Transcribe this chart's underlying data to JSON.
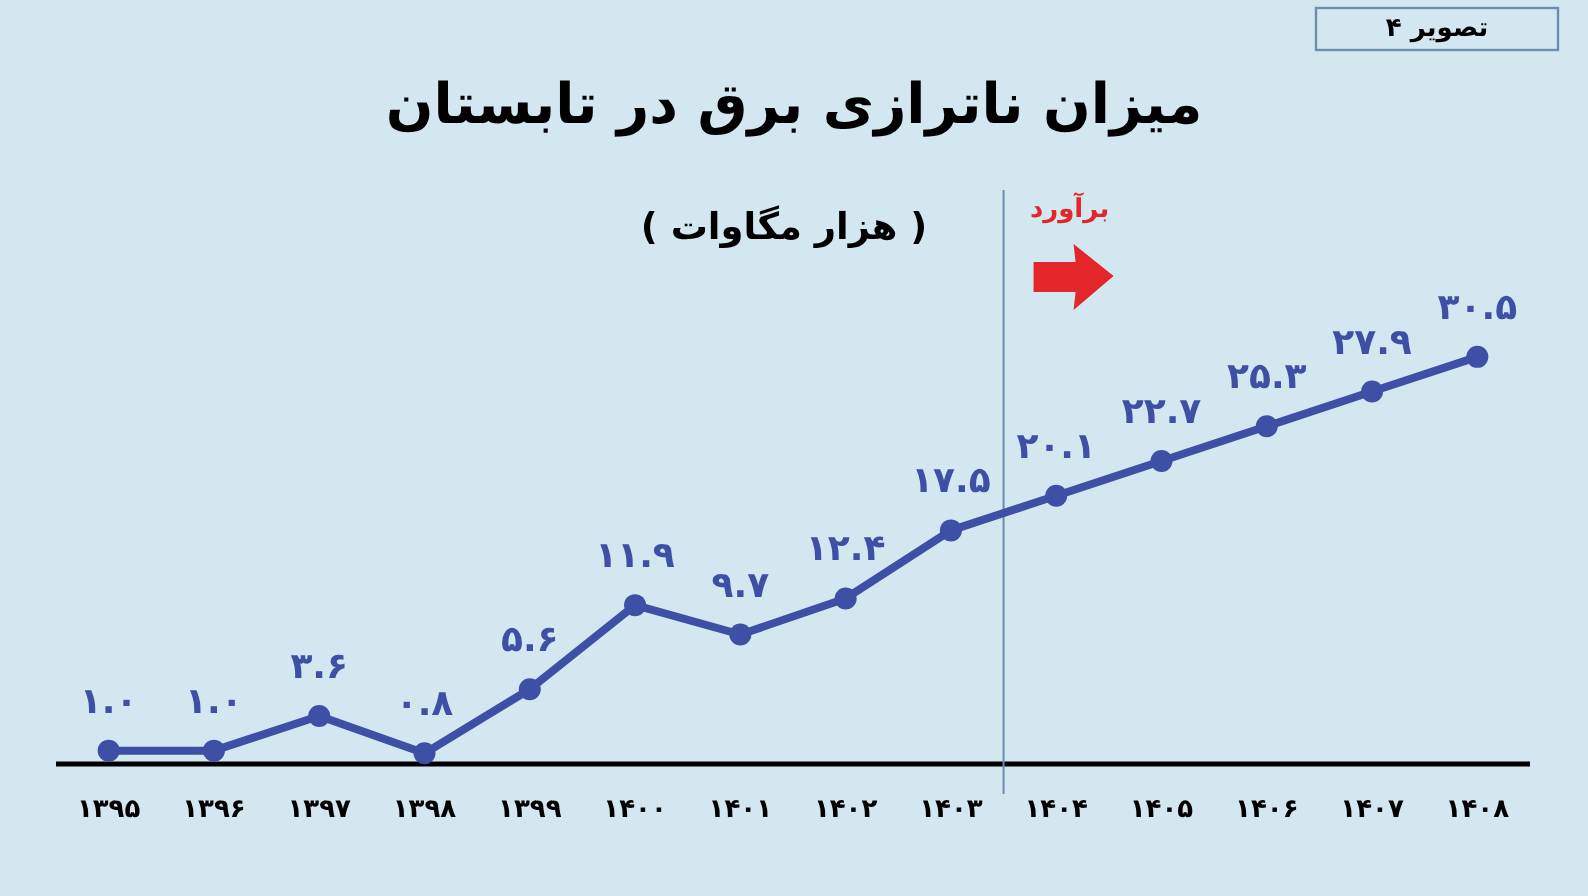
{
  "chart_data": {
    "type": "line",
    "title": "میزان ناترازی برق در تابستان",
    "subtitle": "( هزار مگاوات )",
    "annotations": [
      "تصویر ۴"
    ],
    "x": [
      1395,
      1396,
      1397,
      1398,
      1399,
      1400,
      1401,
      1402,
      1403,
      1404,
      1405,
      1406,
      1407,
      1408
    ],
    "xlim": [
      1394.5,
      1408.5
    ],
    "xticks": [
      {
        "value": 1395,
        "label": "۱۳۹۵"
      },
      {
        "value": 1396,
        "label": "۱۳۹۶"
      },
      {
        "value": 1397,
        "label": "۱۳۹۷"
      },
      {
        "value": 1398,
        "label": "۱۳۹۸"
      },
      {
        "value": 1399,
        "label": "۱۳۹۹"
      },
      {
        "value": 1400,
        "label": "۱۴۰۰"
      },
      {
        "value": 1401,
        "label": "۱۴۰۱"
      },
      {
        "value": 1402,
        "label": "۱۴۰۲"
      },
      {
        "value": 1403,
        "label": "۱۴۰۳"
      },
      {
        "value": 1404,
        "label": "۱۴۰۴"
      },
      {
        "value": 1405,
        "label": "۱۴۰۵"
      },
      {
        "value": 1406,
        "label": "۱۴۰۶"
      },
      {
        "value": 1407,
        "label": "۱۴۰۷"
      },
      {
        "value": 1408,
        "label": "۱۴۰۸"
      }
    ],
    "ylim": [
      0,
      43
    ],
    "tick_labels": "x",
    "marker": "circle",
    "line_style": "solid",
    "series": [
      {
        "color": "#3e50a6",
        "values": [
          1.0,
          1.0,
          3.6,
          0.8,
          5.6,
          11.9,
          9.7,
          12.4,
          17.5,
          20.1,
          22.7,
          25.3,
          27.9,
          30.5
        ],
        "value_labels": [
          "۱.۰",
          "۱.۰",
          "۳.۶",
          "۰.۸",
          "۵.۶",
          "۱۱.۹",
          "۹.۷",
          "۱۲.۴",
          "۱۷.۵",
          "۲۰.۱",
          "۲۲.۷",
          "۲۵.۳",
          "۲۷.۹",
          "۳۰.۵"
        ]
      }
    ],
    "ref_lines": [
      {
        "axis": "x",
        "value": 1403.5,
        "label": "برآورد",
        "color": "#6b8bb5"
      }
    ]
  }
}
